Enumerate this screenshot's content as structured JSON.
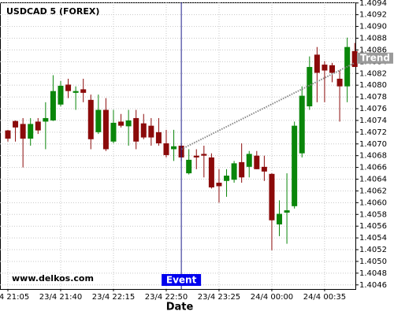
{
  "chart_data": {
    "type": "candlestick",
    "title": "USDCAD 5 (FOREX)",
    "watermark": "www.delkos.com",
    "x_label": "Date",
    "categories": [
      "23/4 21:05",
      null,
      null,
      null,
      null,
      null,
      null,
      "23/4 21:40",
      null,
      null,
      null,
      null,
      null,
      null,
      "23/4 22:15",
      null,
      null,
      null,
      null,
      null,
      null,
      "23/4 22:50",
      null,
      null,
      null,
      null,
      null,
      null,
      "23/4 23:25",
      null,
      null,
      null,
      null,
      null,
      null,
      "24/4 00:00",
      null,
      null,
      null,
      null,
      null,
      null,
      "24/4 00:35",
      null,
      null,
      null,
      null
    ],
    "open": [
      1.40723,
      1.40739,
      1.40734,
      1.40709,
      1.40738,
      1.40738,
      1.4074,
      1.40767,
      1.40801,
      1.40787,
      1.40793,
      1.40775,
      1.4072,
      1.40758,
      1.40704,
      1.40738,
      1.4073,
      1.40744,
      1.40735,
      1.40731,
      1.4072,
      1.40701,
      1.40691,
      1.40697,
      1.4065,
      1.4068,
      1.40683,
      1.40677,
      1.40634,
      1.40637,
      1.40639,
      1.40669,
      1.40661,
      1.4068,
      1.40661,
      1.40649,
      1.40563,
      1.40583,
      1.40594,
      1.40684,
      1.40764,
      1.40852,
      1.40835,
      1.40834,
      1.40811,
      1.40798,
      1.40858
    ],
    "high": [
      1.40724,
      1.4074,
      1.40744,
      1.40744,
      1.40744,
      1.40771,
      1.40817,
      1.40807,
      1.40811,
      1.40798,
      1.40811,
      1.40784,
      1.40784,
      1.40778,
      1.40758,
      1.40751,
      1.40758,
      1.40758,
      1.40751,
      1.40744,
      1.40744,
      1.40724,
      1.40724,
      1.40701,
      1.40691,
      1.40691,
      1.40697,
      1.40684,
      1.40657,
      1.40657,
      1.40671,
      1.40701,
      1.40688,
      1.40688,
      1.4068,
      1.4065,
      1.40604,
      1.4065,
      1.40738,
      1.40798,
      1.40849,
      1.40865,
      1.40841,
      1.40838,
      1.40825,
      1.40881,
      1.40872
    ],
    "low": [
      1.40704,
      1.40704,
      1.4066,
      1.40697,
      1.40717,
      1.40691,
      1.40739,
      1.40764,
      1.40778,
      1.40758,
      1.40771,
      1.40691,
      1.40717,
      1.40688,
      1.40701,
      1.40728,
      1.40697,
      1.40691,
      1.40708,
      1.40697,
      1.40697,
      1.40677,
      1.40671,
      1.40671,
      1.40648,
      1.40657,
      1.40643,
      1.40624,
      1.406,
      1.4061,
      1.40634,
      1.40634,
      1.40643,
      1.40657,
      1.40637,
      1.40519,
      1.40543,
      1.4053,
      1.4059,
      1.40677,
      1.40758,
      1.40771,
      1.40771,
      1.40805,
      1.40738,
      1.40771,
      1.40831
    ],
    "close": [
      1.40709,
      1.40728,
      1.40709,
      1.40734,
      1.40723,
      1.40744,
      1.4079,
      1.40799,
      1.4079,
      1.4079,
      1.40787,
      1.40708,
      1.40758,
      1.40691,
      1.40736,
      1.40731,
      1.4074,
      1.40704,
      1.40711,
      1.40711,
      1.40701,
      1.40681,
      1.40696,
      1.40677,
      1.40673,
      1.40677,
      1.4068,
      1.40626,
      1.40628,
      1.40646,
      1.40667,
      1.40643,
      1.40683,
      1.40657,
      1.40653,
      1.4057,
      1.40581,
      1.40587,
      1.40731,
      1.40782,
      1.40831,
      1.40821,
      1.40825,
      1.40821,
      1.40798,
      1.40865,
      1.40831
    ],
    "up_color": "#0a860a",
    "down_color": "#8b0a0a",
    "ylim": [
      1.40453,
      1.40941
    ],
    "yticks": [
      1.4046,
      1.4048,
      {
        "value": 1.405,
        "label": "1.4050"
      },
      1.4052,
      1.4054,
      1.4056,
      1.4058,
      {
        "value": 1.406,
        "label": "1.4060"
      },
      1.4062,
      1.4064,
      1.4066,
      1.4068,
      {
        "value": 1.407,
        "label": "1.4070"
      },
      1.4072,
      1.4074,
      1.4076,
      1.4078,
      {
        "value": 1.408,
        "label": "1.4080"
      },
      1.4082,
      1.4084,
      1.4086,
      1.4088,
      {
        "value": 1.409,
        "label": "1.4090"
      },
      1.4092,
      1.4094
    ],
    "grid": true,
    "events": [
      {
        "label": "Event",
        "index": 23
      }
    ],
    "trend": {
      "label": "Trend",
      "from": 23,
      "to": 46,
      "values": [
        1.40691,
        1.40838
      ]
    }
  }
}
